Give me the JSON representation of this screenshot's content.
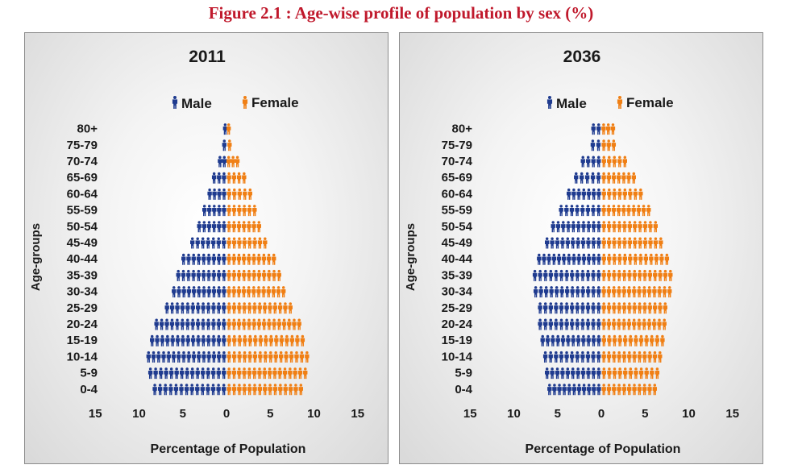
{
  "figure_title": "Figure 2.1 : Age-wise profile of population by sex (%)",
  "colors": {
    "male": "#1f3b8f",
    "female": "#f07f14",
    "title": "#c0192c"
  },
  "chart_data": [
    {
      "type": "bar",
      "title": "2011",
      "ylabel": "Age-groups",
      "xlabel": "Percentage of Population",
      "legend": [
        "Male",
        "Female"
      ],
      "categories": [
        "80+",
        "75-79",
        "70-74",
        "65-69",
        "60-64",
        "55-59",
        "50-54",
        "45-49",
        "40-44",
        "35-39",
        "30-34",
        "25-29",
        "20-24",
        "15-19",
        "10-14",
        "5-9",
        "0-4"
      ],
      "series": [
        {
          "name": "Male",
          "values": [
            0.3,
            0.5,
            1.0,
            1.7,
            2.2,
            2.8,
            3.4,
            4.2,
            5.2,
            5.8,
            6.3,
            7.1,
            8.3,
            8.8,
            9.2,
            9.0,
            8.5
          ]
        },
        {
          "name": "Female",
          "values": [
            0.5,
            0.7,
            1.5,
            2.3,
            3.0,
            3.5,
            4.0,
            4.7,
            5.7,
            6.3,
            6.8,
            7.6,
            8.6,
            9.0,
            9.5,
            9.3,
            8.8
          ]
        }
      ],
      "xticks": [
        "15",
        "10",
        "5",
        "0",
        "5",
        "10",
        "15"
      ],
      "xlim": [
        -15,
        15
      ]
    },
    {
      "type": "bar",
      "title": "2036",
      "ylabel": "Age-groups",
      "xlabel": "Percentage of Population",
      "legend": [
        "Male",
        "Female"
      ],
      "categories": [
        "80+",
        "75-79",
        "70-74",
        "65-69",
        "60-64",
        "55-59",
        "50-54",
        "45-49",
        "40-44",
        "35-39",
        "30-34",
        "25-29",
        "20-24",
        "15-19",
        "10-14",
        "5-9",
        "0-4"
      ],
      "series": [
        {
          "name": "Male",
          "values": [
            1.2,
            1.3,
            2.4,
            3.2,
            4.0,
            4.9,
            5.8,
            6.5,
            7.4,
            7.9,
            7.8,
            7.3,
            7.3,
            7.0,
            6.7,
            6.5,
            6.2
          ]
        },
        {
          "name": "Female",
          "values": [
            1.6,
            1.7,
            3.0,
            4.0,
            4.8,
            5.7,
            6.5,
            7.1,
            7.8,
            8.2,
            8.1,
            7.6,
            7.5,
            7.3,
            7.0,
            6.7,
            6.4
          ]
        }
      ],
      "xticks": [
        "15",
        "10",
        "5",
        "0",
        "5",
        "10",
        "15"
      ],
      "xlim": [
        -15,
        15
      ]
    }
  ]
}
